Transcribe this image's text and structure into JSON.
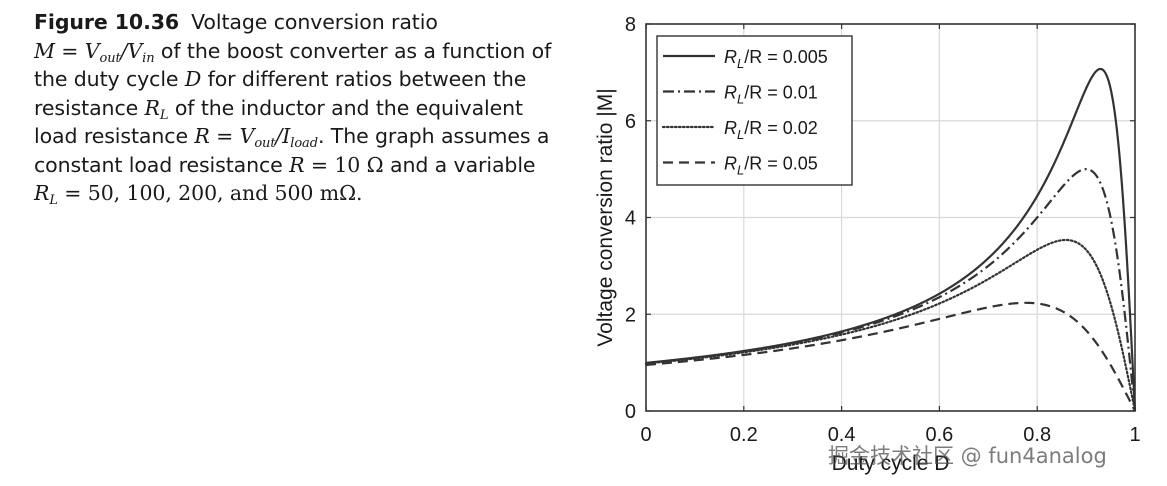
{
  "caption": {
    "figure_label": "Figure 10.36",
    "title": "Voltage conversion ratio",
    "line2_formula": "M = V",
    "line2_sub_out": "out",
    "line2_slash": "/V",
    "line2_sub_in": "in",
    "line2_text": " of the boost converter as a function of",
    "line3_prefix": "the duty cycle ",
    "line3_var": "D",
    "line3_text": " for different ratios between the",
    "line4_prefix": "resistance ",
    "line4_var": "R",
    "line4_sub": "L",
    "line4_text": " of the inductor and the equivalent",
    "line5_prefix": "load resistance ",
    "line5_formula": "R = V",
    "line5_sub_out": "out",
    "line5_slash": "/I",
    "line5_sub_load": "load",
    "line5_text": ". The graph assumes a",
    "line6_prefix": "constant load resistance ",
    "line6_formula": "R",
    "line6_value": " = 10 Ω",
    "line6_text": " and a variable",
    "line7_var": "R",
    "line7_sub": "L",
    "line7_text": " = 50, 100, 200, and 500 mΩ."
  },
  "chart_data": {
    "type": "line",
    "title": "",
    "xlabel": "Duty cycle D",
    "ylabel": "Voltage conversion ratio |M|",
    "xlim": [
      0,
      1
    ],
    "ylim": [
      0,
      8
    ],
    "x_ticks": [
      "0",
      "0.2",
      "0.4",
      "0.6",
      "0.8",
      "1"
    ],
    "y_ticks": [
      "0",
      "2",
      "4",
      "6",
      "8"
    ],
    "grid": true,
    "legend_position": "top-left",
    "line_color": "#333333",
    "series": [
      {
        "name": "R_L/R = 0.005",
        "legend_main": "R",
        "legend_sub": "L",
        "legend_rest": "/R = 0.005",
        "ratio": 0.005,
        "dash": "solid",
        "x": [
          0,
          0.2,
          0.4,
          0.6,
          0.7,
          0.8,
          0.85,
          0.9,
          0.93,
          0.95,
          0.97,
          0.99,
          1.0
        ],
        "y": [
          1.0,
          1.24,
          1.65,
          2.45,
          3.2,
          4.53,
          5.5,
          6.7,
          7.04,
          6.5,
          4.8,
          1.7,
          0
        ]
      },
      {
        "name": "R_L/R = 0.01",
        "legend_main": "R",
        "legend_sub": "L",
        "legend_rest": "/R = 0.01",
        "ratio": 0.01,
        "dash": "dashdot",
        "x": [
          0,
          0.2,
          0.4,
          0.6,
          0.7,
          0.8,
          0.85,
          0.9,
          0.93,
          0.95,
          0.97,
          0.99,
          1.0
        ],
        "y": [
          0.99,
          1.24,
          1.64,
          2.4,
          3.1,
          4.1,
          4.62,
          5.0,
          4.75,
          4.2,
          3.1,
          1.15,
          0
        ]
      },
      {
        "name": "R_L/R = 0.02",
        "legend_main": "R",
        "legend_sub": "L",
        "legend_rest": "/R = 0.02",
        "ratio": 0.02,
        "dash": "dotted",
        "x": [
          0,
          0.2,
          0.4,
          0.6,
          0.7,
          0.8,
          0.85,
          0.9,
          0.93,
          0.95,
          0.97,
          0.99,
          1.0
        ],
        "y": [
          0.98,
          1.23,
          1.61,
          2.3,
          2.86,
          3.4,
          3.54,
          3.4,
          3.0,
          2.6,
          1.95,
          0.85,
          0
        ]
      },
      {
        "name": "R_L/R = 0.05",
        "legend_main": "R",
        "legend_sub": "L",
        "legend_rest": "/R = 0.05",
        "ratio": 0.05,
        "dash": "dashed",
        "x": [
          0,
          0.2,
          0.4,
          0.6,
          0.7,
          0.8,
          0.85,
          0.9,
          0.93,
          0.95,
          0.97,
          0.99,
          1.0
        ],
        "y": [
          0.95,
          1.18,
          1.48,
          1.9,
          2.12,
          2.24,
          2.18,
          1.97,
          1.68,
          1.42,
          1.05,
          0.45,
          0
        ]
      }
    ]
  },
  "watermark": "掘金技术社区 @ fun4analog"
}
